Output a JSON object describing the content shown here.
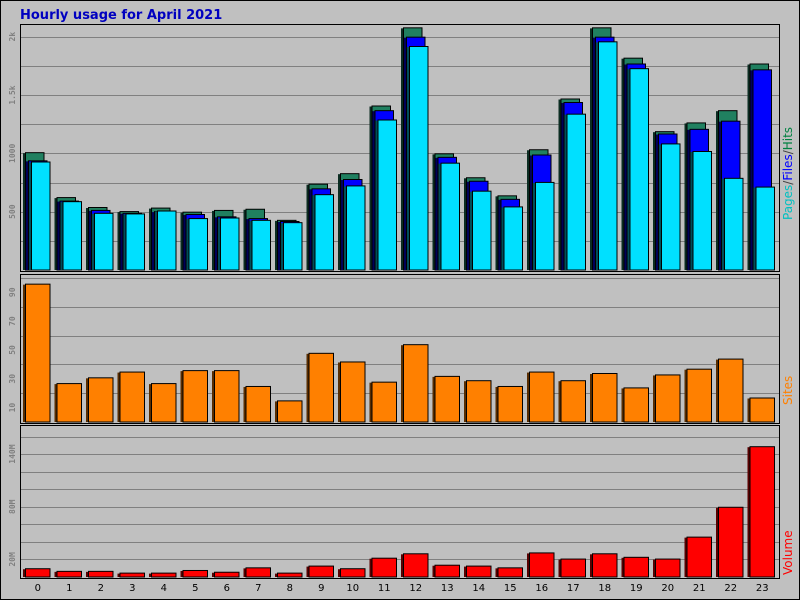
{
  "chart_data": {
    "type": "bar",
    "title": "Hourly usage for April 2021",
    "categories": [
      "0",
      "1",
      "2",
      "3",
      "4",
      "5",
      "6",
      "7",
      "8",
      "9",
      "10",
      "11",
      "12",
      "13",
      "14",
      "15",
      "16",
      "17",
      "18",
      "19",
      "20",
      "21",
      "22",
      "23"
    ],
    "panels": [
      {
        "id": "hits",
        "ylabel_parts": [
          {
            "text": "Pages",
            "color": "#00c0c0"
          },
          {
            "text": "/",
            "color": "#404040"
          },
          {
            "text": "Files",
            "color": "#0000ff"
          },
          {
            "text": "/",
            "color": "#404040"
          },
          {
            "text": "Hits",
            "color": "#008040"
          }
        ],
        "ylim": [
          0,
          2100
        ],
        "yticks": [
          {
            "v": 500,
            "label": "500"
          },
          {
            "v": 1000,
            "label": "1000"
          },
          {
            "v": 1500,
            "label": "1.5k"
          },
          {
            "v": 2000,
            "label": "2k"
          }
        ],
        "series": [
          {
            "name": "Hits",
            "color": "#208060",
            "values": [
              1010,
              625,
              540,
              505,
              535,
              500,
              515,
              525,
              430,
              740,
              830,
              1410,
              2080,
              1000,
              795,
              640,
              1035,
              1470,
              2080,
              1820,
              1190,
              1265,
              1370,
              1770
            ]
          },
          {
            "name": "Files",
            "color": "#0000ff",
            "values": [
              940,
              595,
              515,
              490,
              505,
              480,
              460,
              445,
              420,
              700,
              780,
              1370,
              2000,
              970,
              765,
              610,
              990,
              1440,
              2000,
              1770,
              1170,
              1210,
              1280,
              1720
            ]
          },
          {
            "name": "Pages",
            "color": "#00e0ff",
            "values": [
              930,
              590,
              490,
              485,
              510,
              445,
              450,
              430,
              410,
              650,
              725,
              1290,
              1920,
              920,
              680,
              545,
              755,
              1340,
              1960,
              1730,
              1085,
              1020,
              790,
              715
            ]
          }
        ]
      },
      {
        "id": "sites",
        "ylabel_parts": [
          {
            "text": "Sites",
            "color": "#ff8000"
          }
        ],
        "ylim": [
          0,
          102
        ],
        "yticks": [
          {
            "v": 10,
            "label": "10"
          },
          {
            "v": 30,
            "label": "30"
          },
          {
            "v": 50,
            "label": "50"
          },
          {
            "v": 70,
            "label": "70"
          },
          {
            "v": 90,
            "label": "90"
          }
        ],
        "series": [
          {
            "name": "Sites",
            "color": "#ff8000",
            "values": [
              96,
              27,
              31,
              35,
              27,
              36,
              36,
              25,
              15,
              48,
              42,
              28,
              54,
              32,
              29,
              25,
              35,
              29,
              34,
              24,
              33,
              37,
              44,
              17
            ]
          }
        ]
      },
      {
        "id": "volume",
        "ylabel_parts": [
          {
            "text": "Volume",
            "color": "#ff0000"
          }
        ],
        "ylim": [
          0,
          172
        ],
        "yticks": [
          {
            "v": 20,
            "label": "20M"
          },
          {
            "v": 80,
            "label": "80M"
          },
          {
            "v": 140,
            "label": "140M"
          }
        ],
        "series": [
          {
            "name": "Volume",
            "color": "#ff0000",
            "values": [
              10,
              7,
              7,
              5,
              5,
              8,
              6,
              11,
              5,
              13,
              10,
              22,
              27,
              14,
              13,
              11,
              28,
              21,
              27,
              23,
              21,
              46,
              80,
              149
            ]
          }
        ]
      }
    ]
  }
}
